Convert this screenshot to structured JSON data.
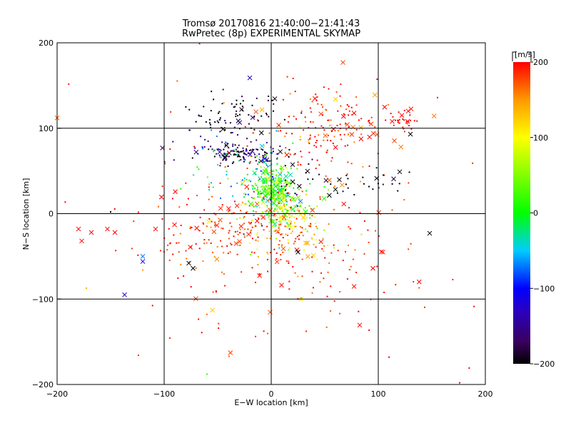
{
  "chart_data": {
    "type": "scatter",
    "title": "Tromsø 20170816 21:40:00−21:41:43",
    "subtitle": "RwPretec (8p) EXPERIMENTAL SKYMAP",
    "xlabel": "E−W location [km]",
    "ylabel": "N−S location [km]",
    "xlim": [
      -200,
      200
    ],
    "ylim": [
      -200,
      200
    ],
    "x_ticks": [
      "−200",
      "−100",
      "0",
      "100",
      "200"
    ],
    "y_ticks": [
      "−200",
      "−100",
      "0",
      "100",
      "200"
    ],
    "grid": true,
    "grid_lines_x": [
      -100,
      0,
      100
    ],
    "grid_lines_y": [
      -100,
      0,
      100
    ],
    "marker_types": [
      "dot",
      "cross"
    ],
    "colorbar": {
      "label": "[m/s]",
      "range": [
        -200,
        200
      ],
      "ticks": [
        "200",
        "100",
        "0",
        "−100",
        "−200"
      ],
      "colormap": "rainbow: black(-200) → purple → blue(-100) → cyan → green(0) → yellow(100) → red(200)",
      "stops": [
        {
          "v": -200,
          "c": "#000000"
        },
        {
          "v": -170,
          "c": "#3a0060"
        },
        {
          "v": -130,
          "c": "#2a00c0"
        },
        {
          "v": -100,
          "c": "#0000ff"
        },
        {
          "v": -50,
          "c": "#00ccff"
        },
        {
          "v": 0,
          "c": "#00ff00"
        },
        {
          "v": 60,
          "c": "#9cff00"
        },
        {
          "v": 100,
          "c": "#ffff00"
        },
        {
          "v": 150,
          "c": "#ff9900"
        },
        {
          "v": 200,
          "c": "#ff0000"
        }
      ]
    },
    "clusters": [
      {
        "cx": -30,
        "cy": 117,
        "sx": 22,
        "sy": 12,
        "v": -200,
        "vs": 20,
        "n": 70
      },
      {
        "cx": -25,
        "cy": 70,
        "sx": 22,
        "sy": 6,
        "v": -180,
        "vs": 30,
        "n": 110
      },
      {
        "cx": -55,
        "cy": 85,
        "sx": 18,
        "sy": 12,
        "v": -140,
        "vs": 40,
        "n": 30
      },
      {
        "cx": 0,
        "cy": 32,
        "sx": 10,
        "sy": 14,
        "v": 20,
        "vs": 40,
        "n": 220
      },
      {
        "cx": 10,
        "cy": 5,
        "sx": 16,
        "sy": 14,
        "v": 60,
        "vs": 60,
        "n": 200
      },
      {
        "cx": -20,
        "cy": 50,
        "sx": 22,
        "sy": 20,
        "v": -40,
        "vs": 60,
        "n": 80
      },
      {
        "cx": 50,
        "cy": 100,
        "sx": 30,
        "sy": 25,
        "v": 190,
        "vs": 30,
        "n": 160
      },
      {
        "cx": 120,
        "cy": 110,
        "sx": 8,
        "sy": 6,
        "v": 200,
        "vs": 10,
        "n": 25
      },
      {
        "cx": 70,
        "cy": 35,
        "sx": 40,
        "sy": 10,
        "v": -200,
        "vs": 10,
        "n": 40
      },
      {
        "cx": 20,
        "cy": -20,
        "sx": 30,
        "sy": 20,
        "v": 120,
        "vs": 50,
        "n": 90
      },
      {
        "cx": -40,
        "cy": -20,
        "sx": 40,
        "sy": 30,
        "v": 190,
        "vs": 20,
        "n": 170
      },
      {
        "cx": 40,
        "cy": -60,
        "sx": 50,
        "sy": 40,
        "v": 190,
        "vs": 20,
        "n": 90
      },
      {
        "cx": 0,
        "cy": 0,
        "sx": 110,
        "sy": 110,
        "v": 190,
        "vs": 20,
        "n": 90
      }
    ],
    "point_samples": [
      {
        "x": -180,
        "y": -18,
        "v": 200,
        "m": "cross"
      },
      {
        "x": -177,
        "y": -32,
        "v": 200,
        "m": "cross"
      },
      {
        "x": -168,
        "y": -22,
        "v": 200,
        "m": "cross"
      },
      {
        "x": -153,
        "y": -18,
        "v": 200,
        "m": "cross"
      },
      {
        "x": -146,
        "y": -22,
        "v": 200,
        "m": "cross"
      },
      {
        "x": -108,
        "y": -18,
        "v": 200,
        "m": "cross"
      },
      {
        "x": -120,
        "y": -50,
        "v": -70,
        "m": "cross"
      },
      {
        "x": -120,
        "y": -56,
        "v": -110,
        "m": "cross"
      },
      {
        "x": -137,
        "y": -95,
        "v": -130,
        "m": "cross"
      },
      {
        "x": 148,
        "y": -23,
        "v": -200,
        "m": "cross"
      },
      {
        "x": 130,
        "y": 93,
        "v": -200,
        "m": "cross"
      },
      {
        "x": 120,
        "y": 49,
        "v": -200,
        "m": "cross"
      },
      {
        "x": 122,
        "y": 115,
        "v": 200,
        "m": "cross"
      },
      {
        "x": 128,
        "y": 120,
        "v": 200,
        "m": "cross"
      },
      {
        "x": 113,
        "y": 108,
        "v": 200,
        "m": "cross"
      },
      {
        "x": -20,
        "y": 159,
        "v": -130,
        "m": "cross"
      },
      {
        "x": 67,
        "y": 177,
        "v": 180,
        "m": "cross"
      },
      {
        "x": 60,
        "y": 134,
        "v": 120,
        "m": "cross"
      },
      {
        "x": 28,
        "y": -100,
        "v": 100,
        "m": "cross"
      },
      {
        "x": -55,
        "y": -113,
        "v": 130,
        "m": "cross"
      },
      {
        "x": 95,
        "y": -64,
        "v": 200,
        "m": "cross"
      },
      {
        "x": 25,
        "y": -45,
        "v": -200,
        "m": "cross"
      },
      {
        "x": -73,
        "y": -64,
        "v": -200,
        "m": "cross"
      },
      {
        "x": -77,
        "y": -58,
        "v": -200,
        "m": "cross"
      },
      {
        "x": -120,
        "y": -66,
        "v": 150,
        "m": "dot"
      },
      {
        "x": -150,
        "y": 2,
        "v": -200,
        "m": "dot"
      },
      {
        "x": -67,
        "y": 199,
        "v": 200,
        "m": "dot"
      },
      {
        "x": 176,
        "y": -198,
        "v": 200,
        "m": "dot"
      },
      {
        "x": 110,
        "y": -168,
        "v": 200,
        "m": "dot"
      },
      {
        "x": -60,
        "y": -188,
        "v": 20,
        "m": "dot"
      }
    ]
  }
}
